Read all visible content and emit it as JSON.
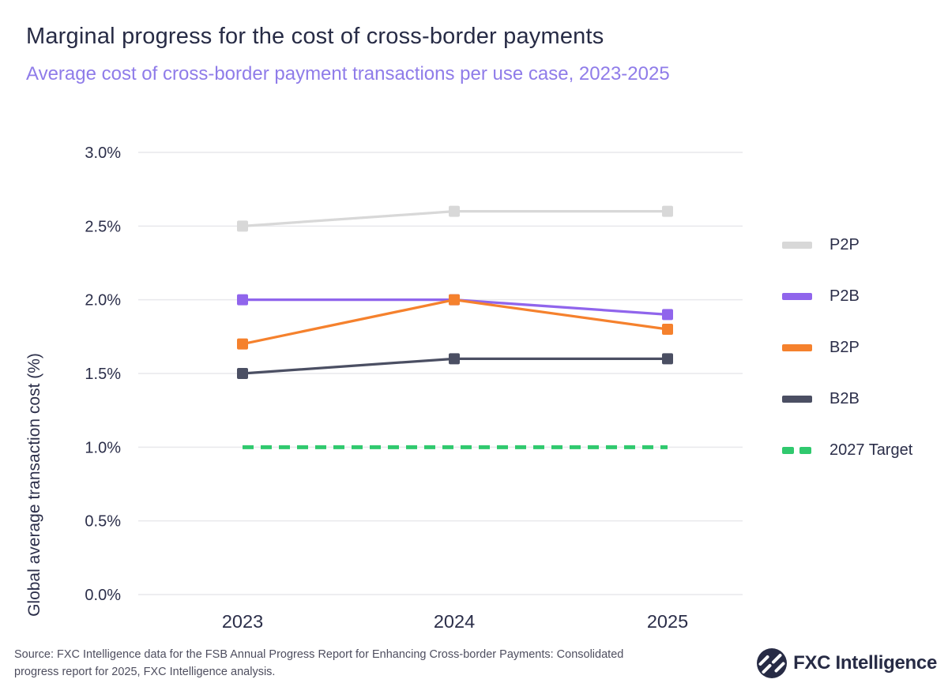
{
  "header": {
    "title": "Marginal progress for the cost of cross-border payments",
    "subtitle": "Average cost of cross-border payment transactions per use case, 2023-2025"
  },
  "chart_data": {
    "type": "line",
    "x": [
      2023,
      2024,
      2025
    ],
    "x_labels": [
      "2023",
      "2024",
      "2025"
    ],
    "xlabel": "",
    "ylabel": "Global average transaction cost (%)",
    "ylim": [
      0,
      3
    ],
    "yticks": [
      {
        "value": 3.0,
        "label": "3.0%"
      },
      {
        "value": 2.5,
        "label": "2.5%"
      },
      {
        "value": 2.0,
        "label": "2.0%"
      },
      {
        "value": 1.5,
        "label": "1.5%"
      },
      {
        "value": 1.0,
        "label": "1.0%"
      },
      {
        "value": 0.5,
        "label": "0.5%"
      },
      {
        "value": 0.0,
        "label": "0.0%"
      }
    ],
    "grid": true,
    "legend_position": "right",
    "series": [
      {
        "name": "P2P",
        "values": [
          2.5,
          2.6,
          2.6
        ],
        "color": "#d8d8d8",
        "style": "solid"
      },
      {
        "name": "P2B",
        "values": [
          2.0,
          2.0,
          1.9
        ],
        "color": "#9065ec",
        "style": "solid"
      },
      {
        "name": "B2P",
        "values": [
          1.7,
          2.0,
          1.8
        ],
        "color": "#f5812d",
        "style": "solid"
      },
      {
        "name": "B2B",
        "values": [
          1.5,
          1.6,
          1.6
        ],
        "color": "#4b4f63",
        "style": "solid"
      },
      {
        "name": "2027 Target",
        "values": [
          1.0,
          1.0,
          1.0
        ],
        "color": "#30c96e",
        "style": "dashed"
      }
    ]
  },
  "footer": {
    "source": "Source: FXC Intelligence data for the FSB Annual Progress Report for Enhancing Cross-border Payments: Consolidated\nprogress report for 2025, FXC Intelligence analysis.",
    "logo_text": "FXC Intelligence"
  },
  "colors": {
    "background": "#ffffff",
    "title": "#272b45",
    "subtitle": "#8f7ce9",
    "axis_text": "#2b2e49",
    "grid": "#e9e9ec",
    "source_text": "#4e4e5f",
    "logo": "#272b45"
  }
}
